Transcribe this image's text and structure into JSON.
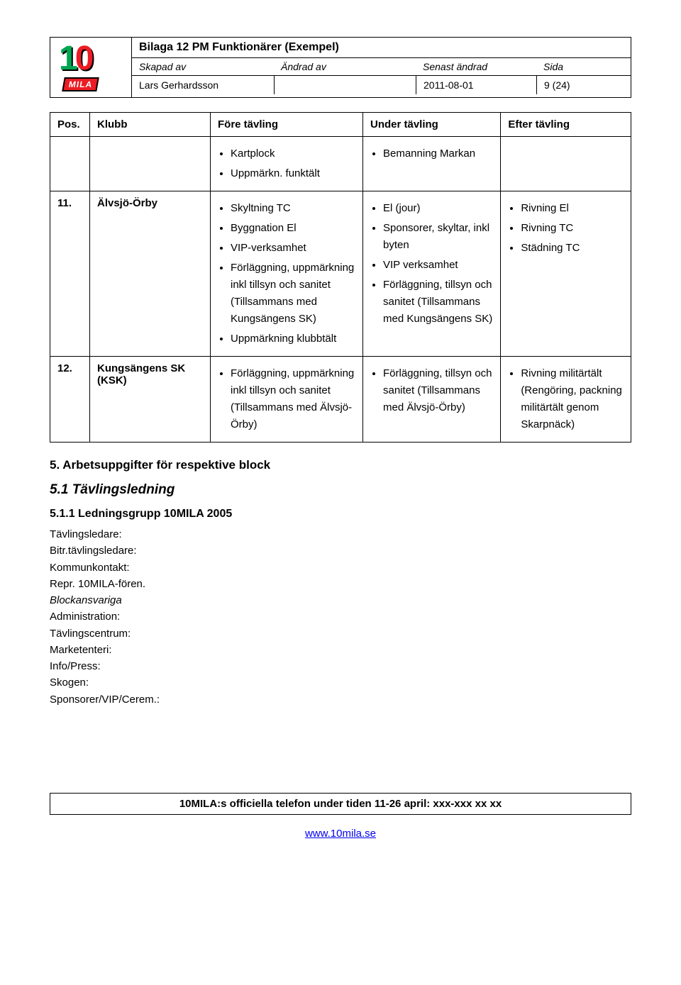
{
  "header": {
    "title": "Bilaga 12 PM Funktionärer (Exempel)",
    "labels": {
      "created_by": "Skapad av",
      "changed_by": "Ändrad av",
      "last_changed": "Senast ändrad",
      "page": "Sida"
    },
    "values": {
      "created_by": "Lars Gerhardsson",
      "changed_by": "",
      "last_changed": "2011-08-01",
      "page": "9 (24)"
    },
    "logo": {
      "one": "1",
      "zero": "0",
      "mila": "MILA"
    }
  },
  "table": {
    "headers": {
      "pos": "Pos.",
      "klubb": "Klubb",
      "fore": "Före tävling",
      "under": "Under tävling",
      "efter": "Efter tävling"
    },
    "rows": [
      {
        "pos": "",
        "klubb": "",
        "fore": [
          "Kartplock",
          "Uppmärkn. funktält"
        ],
        "under": [
          "Bemanning Markan"
        ],
        "efter": []
      },
      {
        "pos": "11.",
        "klubb": "Älvsjö-Örby",
        "fore": [
          "Skyltning TC",
          "Byggnation El",
          "VIP-verksamhet",
          "Förläggning, uppmärkning inkl tillsyn och sanitet (Tillsammans med Kungsängens SK)",
          "Uppmärkning klubbtält"
        ],
        "under": [
          "El (jour)",
          "Sponsorer, skyltar, inkl byten",
          "VIP verksamhet",
          "Förläggning, tillsyn och sanitet (Tillsammans med Kungsängens SK)"
        ],
        "efter": [
          "Rivning El",
          "Rivning TC",
          "Städning TC"
        ]
      },
      {
        "pos": "12.",
        "klubb": "Kungsängens SK (KSK)",
        "fore": [
          "Förläggning, uppmärkning inkl tillsyn och sanitet (Tillsammans med Älvsjö-Örby)"
        ],
        "under": [
          "Förläggning, tillsyn och sanitet (Tillsammans med Älvsjö-Örby)"
        ],
        "efter": [
          "Rivning militärtält (Rengöring, packning militärtält genom Skarpnäck)"
        ]
      }
    ]
  },
  "sections": {
    "h1": "5. Arbetsuppgifter för respektive block",
    "h2": "5.1       Tävlingsledning",
    "h3": "5.1.1    Ledningsgrupp 10MILA 2005",
    "lines": [
      {
        "text": "Tävlingsledare:",
        "italic": false
      },
      {
        "text": "Bitr.tävlingsledare:",
        "italic": false
      },
      {
        "text": "Kommunkontakt:",
        "italic": false
      },
      {
        "text": "Repr. 10MILA-fören.",
        "italic": false
      },
      {
        "text": "Blockansvariga",
        "italic": true
      },
      {
        "text": "Administration:",
        "italic": false
      },
      {
        "text": "Tävlingscentrum:",
        "italic": false
      },
      {
        "text": "Marketenteri:",
        "italic": false
      },
      {
        "text": "Info/Press:",
        "italic": false
      },
      {
        "text": "Skogen:",
        "italic": false
      },
      {
        "text": "Sponsorer/VIP/Cerem.:",
        "italic": false
      }
    ]
  },
  "footer": {
    "box": "10MILA:s officiella telefon under tiden 11-26 april: xxx-xxx xx xx",
    "link": "www.10mila.se"
  }
}
